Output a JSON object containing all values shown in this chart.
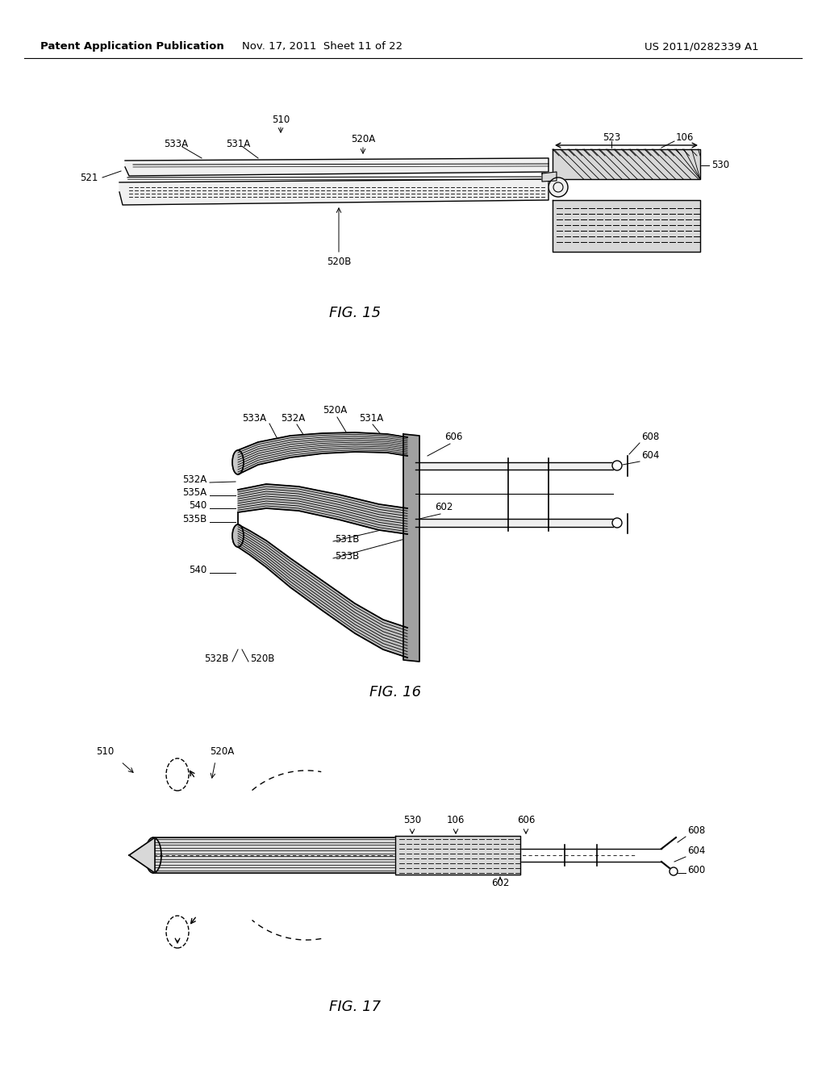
{
  "bg_color": "#ffffff",
  "line_color": "#000000",
  "header_left": "Patent Application Publication",
  "header_mid": "Nov. 17, 2011  Sheet 11 of 22",
  "header_right": "US 2011/0282339 A1",
  "fig15_label": "FIG. 15",
  "fig16_label": "FIG. 16",
  "fig17_label": "FIG. 17",
  "font_size_header": 9.5,
  "font_size_label": 13,
  "font_size_callout": 8.5,
  "hatch_color": "#555555",
  "fill_light": "#f0f0f0",
  "fill_mid": "#d8d8d8",
  "fill_dark": "#b0b0b0"
}
